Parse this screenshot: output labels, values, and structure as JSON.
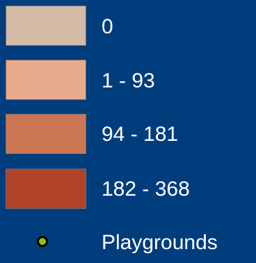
{
  "legend": {
    "classes": [
      {
        "label": "0",
        "color": "#d4bba8"
      },
      {
        "label": "1 - 93",
        "color": "#e8ab8e"
      },
      {
        "label": "94 - 181",
        "color": "#cc7654"
      },
      {
        "label": "182 - 368",
        "color": "#b14428"
      }
    ],
    "point_symbol": {
      "label": "Playgrounds",
      "color": "#8cc30e",
      "icon": "green-circle-icon"
    }
  }
}
